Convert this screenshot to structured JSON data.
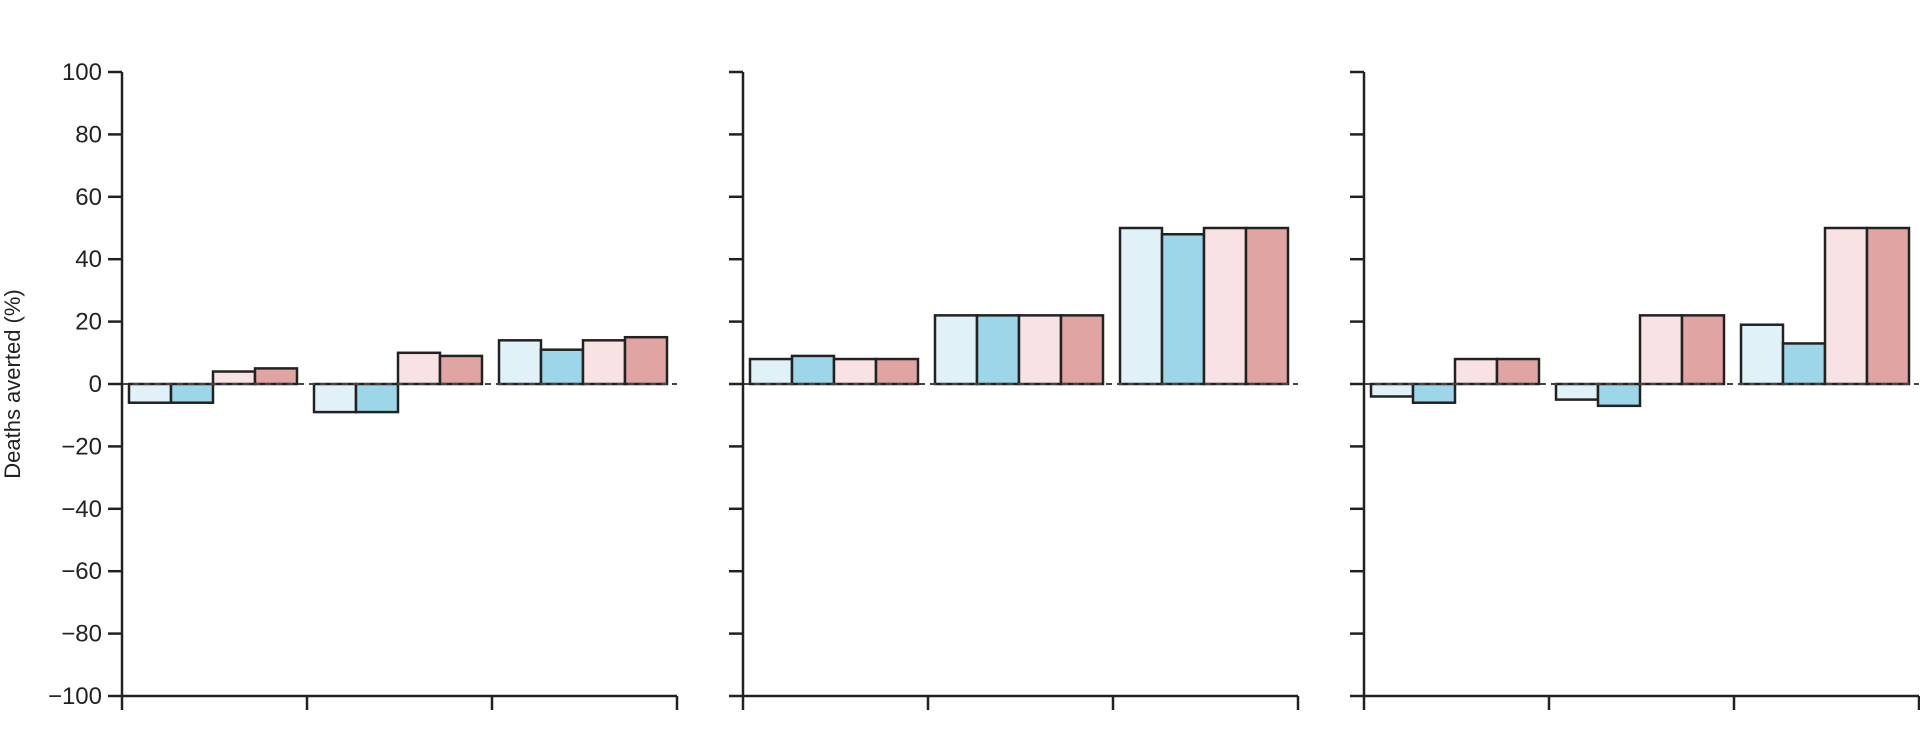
{
  "chart_data": {
    "type": "bar",
    "ylabel": "Deaths averted (%)",
    "ylim": [
      -100,
      100
    ],
    "yticks": [
      100,
      80,
      60,
      40,
      20,
      0,
      -20,
      -40,
      -60,
      -80,
      -100
    ],
    "ytick_labels": [
      "100",
      "80",
      "60",
      "40",
      "20",
      "0",
      "−20",
      "−40",
      "−60",
      "−80",
      "−100"
    ],
    "zero_line": "dashed",
    "grid": false,
    "legend": "none",
    "series_colors": [
      "#e1f1f8",
      "#9dd6e8",
      "#f8e2e4",
      "#e0a4a2"
    ],
    "panels": [
      {
        "groups": [
          {
            "values": [
              -6,
              -6,
              4,
              5
            ]
          },
          {
            "values": [
              -9,
              -9,
              10,
              9
            ]
          },
          {
            "values": [
              14,
              11,
              14,
              15
            ]
          }
        ]
      },
      {
        "groups": [
          {
            "values": [
              8,
              9,
              8,
              8
            ]
          },
          {
            "values": [
              22,
              22,
              22,
              22
            ]
          },
          {
            "values": [
              50,
              48,
              50,
              50
            ]
          }
        ]
      },
      {
        "groups": [
          {
            "values": [
              -4,
              -6,
              8,
              8
            ]
          },
          {
            "values": [
              -5,
              -7,
              22,
              22
            ]
          },
          {
            "values": [
              19,
              13,
              50,
              50
            ]
          }
        ]
      }
    ]
  }
}
